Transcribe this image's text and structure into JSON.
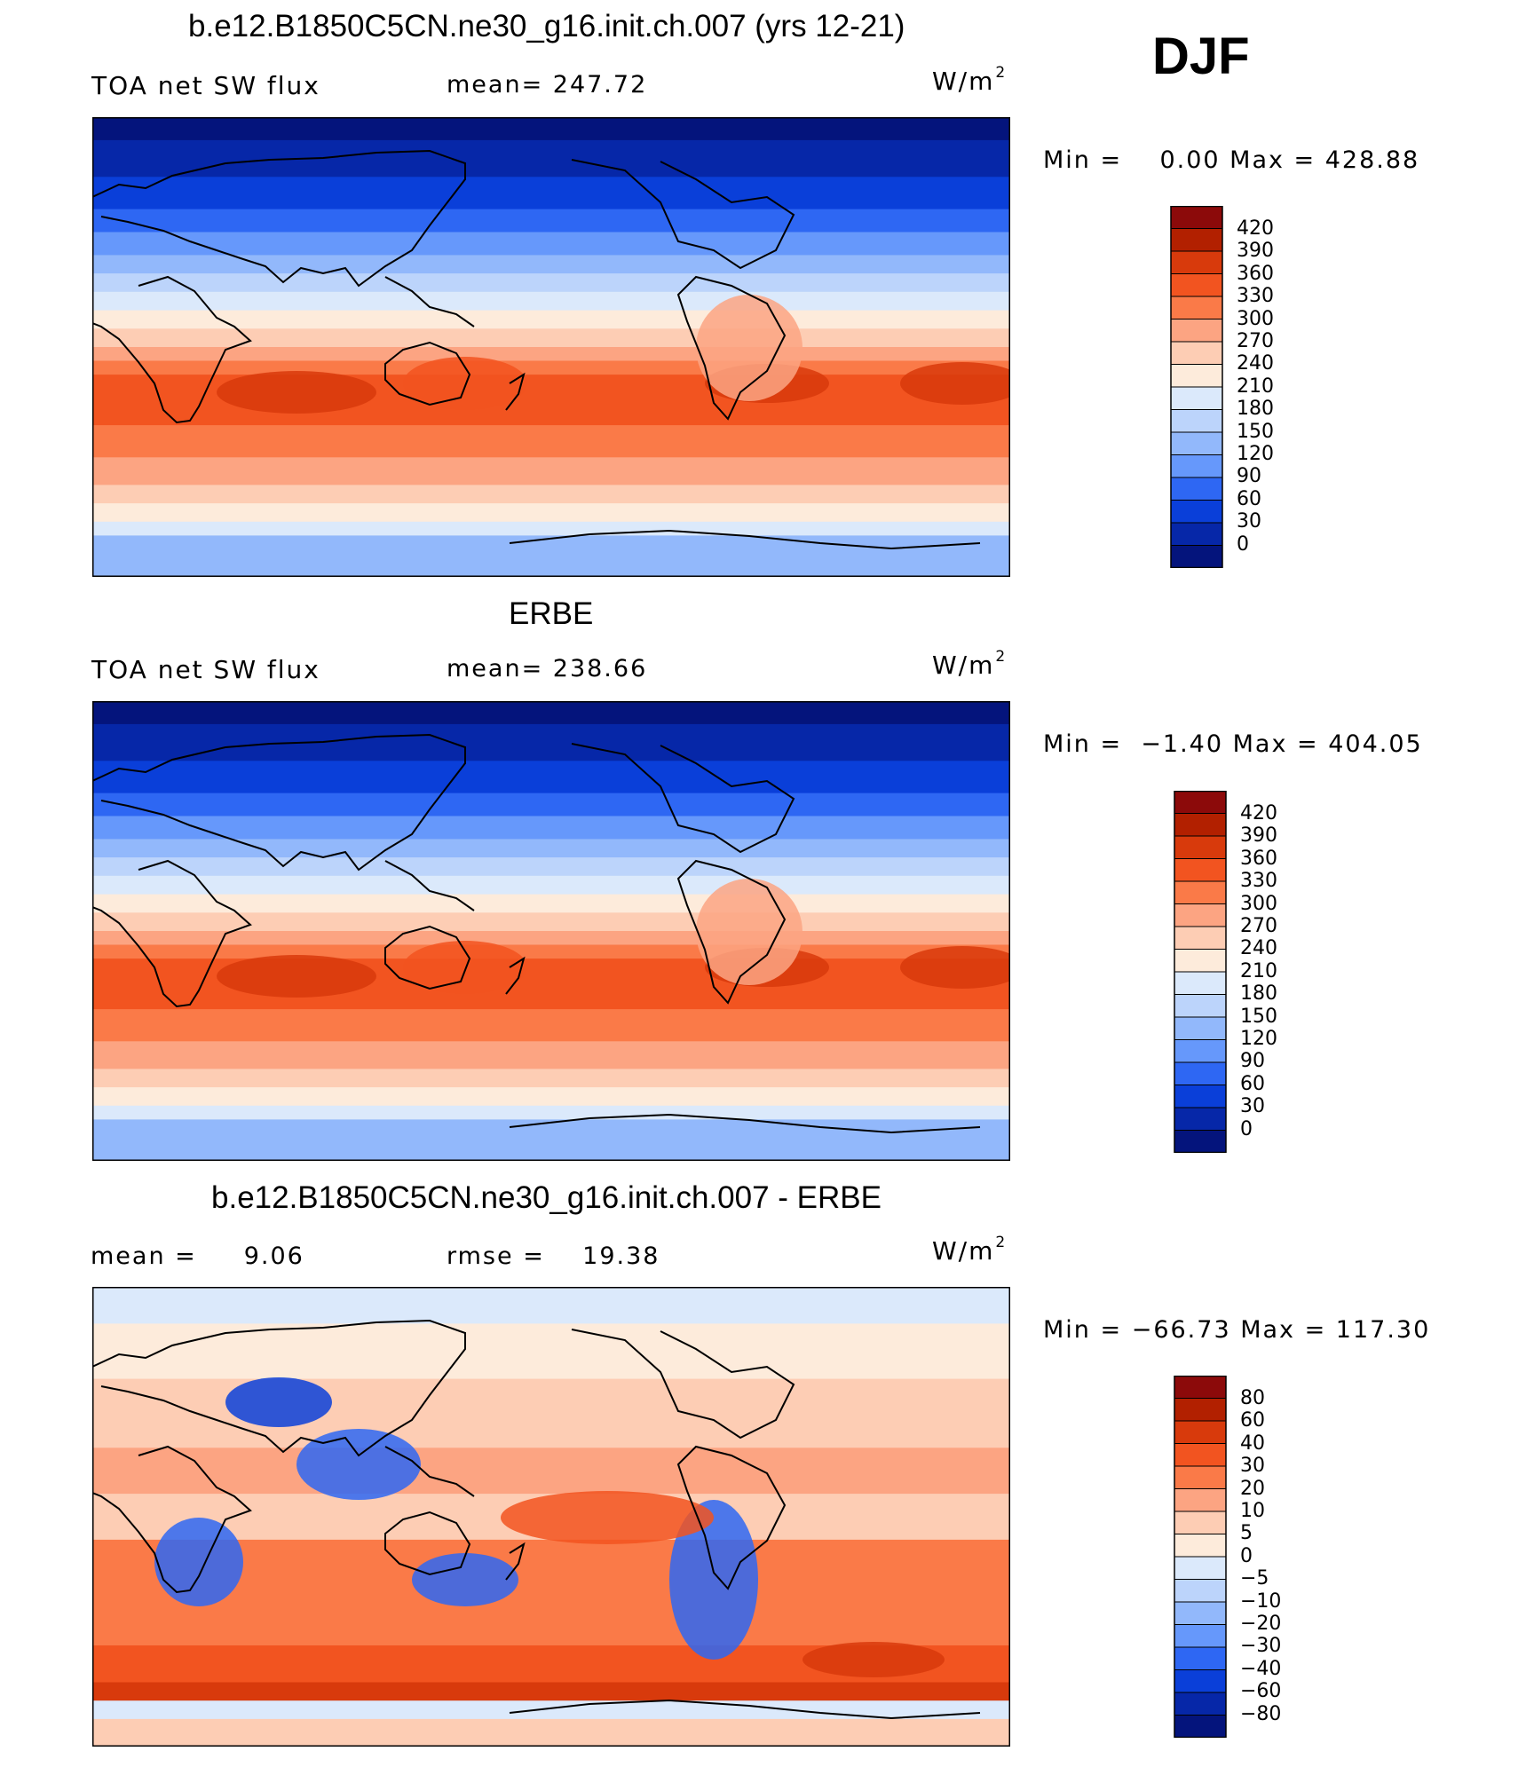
{
  "season": "DJF",
  "panels": [
    {
      "title": "b.e12.B1850C5CN.ne30_g16.init.ch.007 (yrs 12-21)",
      "left_label": "TOA net SW flux",
      "mid_label": "mean= 247.72",
      "unit": "W/m",
      "unit_sup": "2",
      "minmax": "Min =    0.00 Max = 428.88",
      "colorbar": {
        "labels": [
          "420",
          "390",
          "360",
          "330",
          "300",
          "270",
          "240",
          "210",
          "180",
          "150",
          "120",
          "90",
          "60",
          "30",
          "0"
        ],
        "colors": [
          "#8c0a0a",
          "#b22000",
          "#d83a0c",
          "#f25420",
          "#fa7a48",
          "#fca482",
          "#fdcdb4",
          "#fdebdb",
          "#dbe9fb",
          "#bcd4fb",
          "#92b8fb",
          "#6698fb",
          "#2e67f3",
          "#0a3fd9",
          "#0627a8",
          "#04147c"
        ]
      },
      "map": {
        "kind": "absolute",
        "mean_field": "model"
      }
    },
    {
      "title": "ERBE",
      "left_label": "TOA net SW flux",
      "mid_label": "mean= 238.66",
      "unit": "W/m",
      "unit_sup": "2",
      "minmax": "Min =  −1.40 Max = 404.05",
      "colorbar": {
        "labels": [
          "420",
          "390",
          "360",
          "330",
          "300",
          "270",
          "240",
          "210",
          "180",
          "150",
          "120",
          "90",
          "60",
          "30",
          "0"
        ],
        "colors": [
          "#8c0a0a",
          "#b22000",
          "#d83a0c",
          "#f25420",
          "#fa7a48",
          "#fca482",
          "#fdcdb4",
          "#fdebdb",
          "#dbe9fb",
          "#bcd4fb",
          "#92b8fb",
          "#6698fb",
          "#2e67f3",
          "#0a3fd9",
          "#0627a8",
          "#04147c"
        ]
      },
      "map": {
        "kind": "absolute",
        "mean_field": "obs"
      }
    },
    {
      "title": "b.e12.B1850C5CN.ne30_g16.init.ch.007 - ERBE",
      "left_label": "mean =     9.06",
      "mid_label": "rmse =    19.38",
      "unit": "W/m",
      "unit_sup": "2",
      "minmax": "Min = −66.73 Max = 117.30",
      "colorbar": {
        "labels": [
          "80",
          "60",
          "40",
          "30",
          "20",
          "10",
          "5",
          "0",
          "−5",
          "−10",
          "−20",
          "−30",
          "−40",
          "−60",
          "−80"
        ],
        "colors": [
          "#8c0a0a",
          "#b22000",
          "#d83a0c",
          "#f25420",
          "#fa7a48",
          "#fca482",
          "#fdcdb4",
          "#fdebdb",
          "#dbe9fb",
          "#bcd4fb",
          "#92b8fb",
          "#6698fb",
          "#2e67f3",
          "#0a3fd9",
          "#0627a8",
          "#04147c"
        ]
      },
      "map": {
        "kind": "difference"
      }
    }
  ]
}
